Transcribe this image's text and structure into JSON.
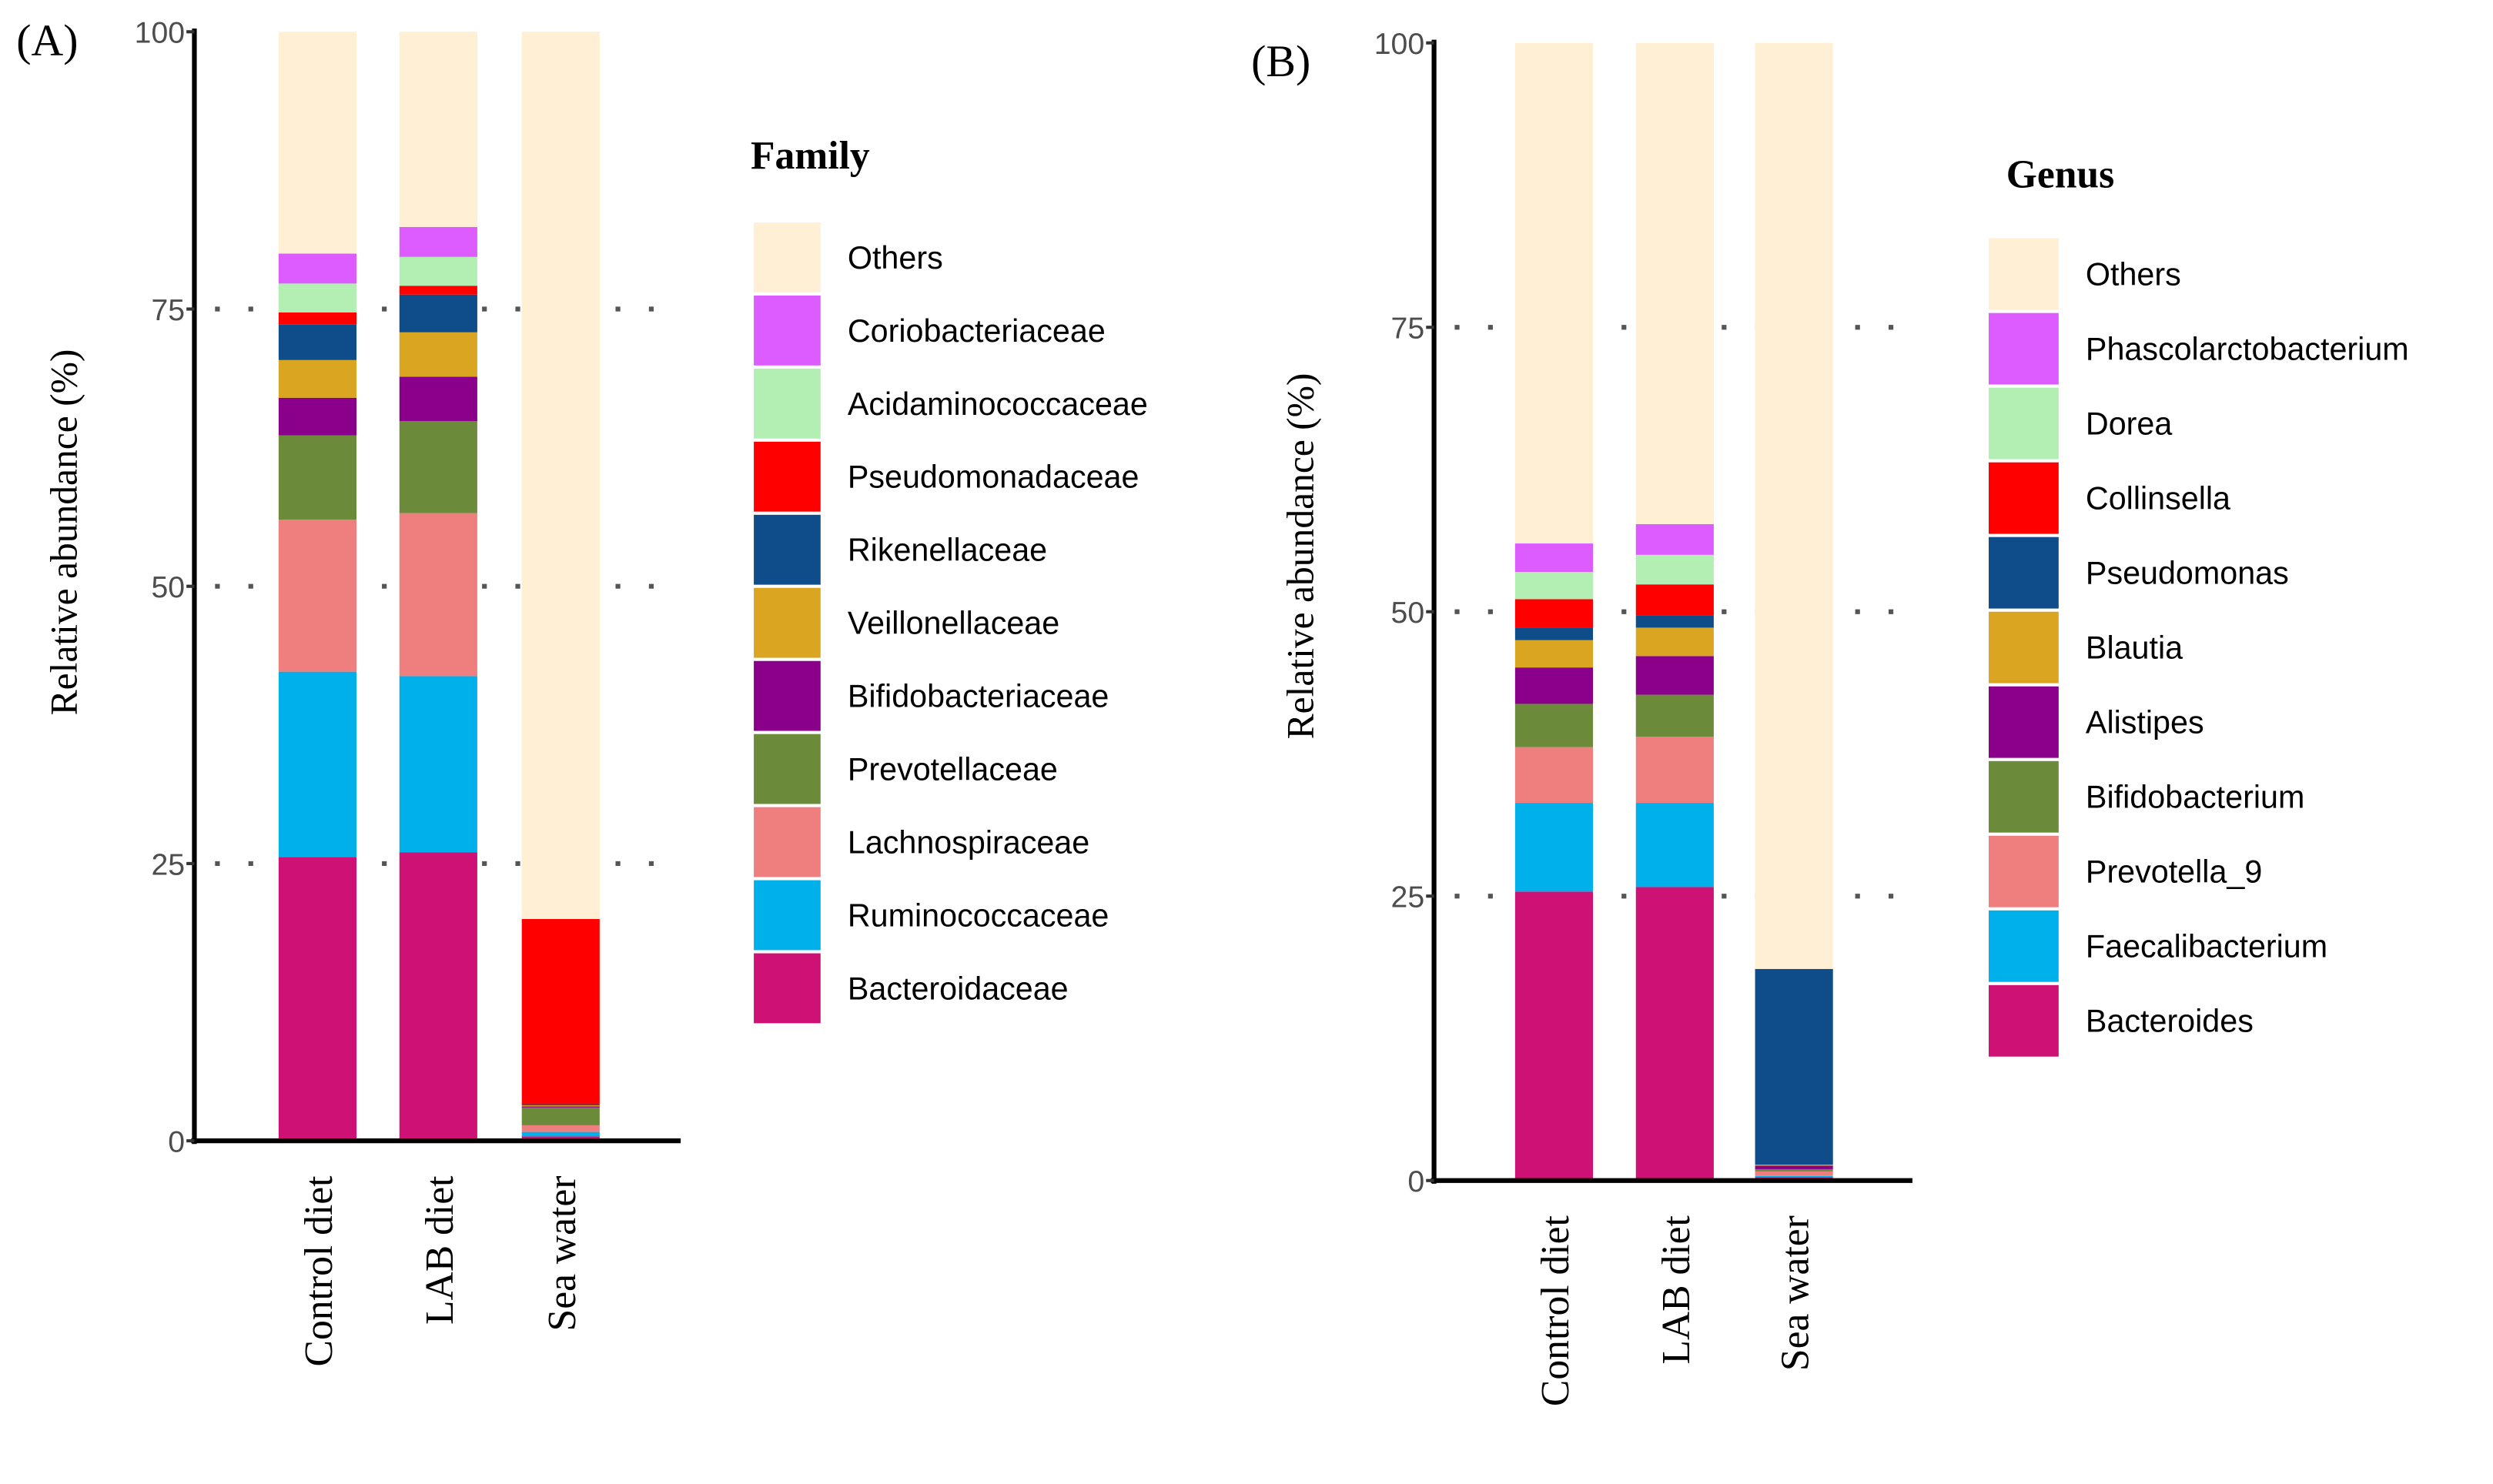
{
  "chart_data": [
    {
      "type": "bar",
      "stacked": true,
      "panel_label": "(A)",
      "ylabel": "Relative abundance (%)",
      "xlabel": "",
      "ylim": [
        0,
        100
      ],
      "yticks": [
        "0",
        "25",
        "50",
        "75",
        "100"
      ],
      "grid": "dotted horizontal at 25, 50, 75",
      "categories": [
        "Control diet",
        "LAB diet",
        "Sea water"
      ],
      "legend_title": "Family",
      "legend_position": "right",
      "series": [
        {
          "name": "Bacteroidaceae",
          "color": "#CE1175",
          "values": [
            25.6,
            26.0,
            0.4
          ]
        },
        {
          "name": "Ruminococcaceae",
          "color": "#00B0EB",
          "values": [
            16.7,
            15.9,
            0.4
          ]
        },
        {
          "name": "Lachnospiraceae",
          "color": "#EF7F7F",
          "values": [
            13.7,
            14.7,
            0.6
          ]
        },
        {
          "name": "Prevotellaceae",
          "color": "#6B8B3A",
          "values": [
            7.6,
            8.3,
            1.6
          ]
        },
        {
          "name": "Bifidobacteriaceae",
          "color": "#8B008B",
          "values": [
            3.4,
            4.0,
            0.1
          ]
        },
        {
          "name": "Veillonellaceae",
          "color": "#DAA520",
          "values": [
            3.4,
            4.0,
            0.1
          ]
        },
        {
          "name": "Rikenellaceae",
          "color": "#0F4C8A",
          "values": [
            3.2,
            3.4,
            0.1
          ]
        },
        {
          "name": "Pseudomonadaceae",
          "color": "#FF0000",
          "values": [
            1.1,
            0.8,
            16.7
          ]
        },
        {
          "name": "Acidaminococcaceae",
          "color": "#B3EEB3",
          "values": [
            2.6,
            2.6,
            0.0
          ]
        },
        {
          "name": "Coriobacteriaceae",
          "color": "#DD5CFF",
          "values": [
            2.7,
            2.7,
            0.0
          ]
        },
        {
          "name": "Others",
          "color": "#FEEFD5",
          "values": [
            20.0,
            17.6,
            80.0
          ]
        }
      ]
    },
    {
      "type": "bar",
      "stacked": true,
      "panel_label": "(B)",
      "ylabel": "Relative abundance (%)",
      "xlabel": "",
      "ylim": [
        0,
        100
      ],
      "yticks": [
        "0",
        "25",
        "50",
        "75",
        "100"
      ],
      "grid": "dotted horizontal at 25, 50, 75",
      "categories": [
        "Control diet",
        "LAB diet",
        "Sea water"
      ],
      "legend_title": "Genus",
      "legend_position": "right",
      "series": [
        {
          "name": "Bacteroides",
          "color": "#CE1175",
          "values": [
            25.4,
            25.8,
            0.3
          ]
        },
        {
          "name": "Faecalibacterium",
          "color": "#00B0EB",
          "values": [
            7.8,
            7.4,
            0.1
          ]
        },
        {
          "name": "Prevotella_9",
          "color": "#EF7F7F",
          "values": [
            4.9,
            5.8,
            0.4
          ]
        },
        {
          "name": "Bifidobacterium",
          "color": "#6B8B3A",
          "values": [
            3.8,
            3.7,
            0.2
          ]
        },
        {
          "name": "Alistipes",
          "color": "#8B008B",
          "values": [
            3.2,
            3.4,
            0.3
          ]
        },
        {
          "name": "Blautia",
          "color": "#DAA520",
          "values": [
            2.4,
            2.5,
            0.1
          ]
        },
        {
          "name": "Pseudomonas",
          "color": "#0F4C8A",
          "values": [
            1.1,
            1.1,
            17.2
          ]
        },
        {
          "name": "Collinsella",
          "color": "#FF0000",
          "values": [
            2.5,
            2.7,
            0.0
          ]
        },
        {
          "name": "Dorea",
          "color": "#B3EEB3",
          "values": [
            2.4,
            2.6,
            0.0
          ]
        },
        {
          "name": "Phascolarctobacterium",
          "color": "#DD5CFF",
          "values": [
            2.5,
            2.7,
            0.0
          ]
        },
        {
          "name": "Others",
          "color": "#FEEFD5",
          "values": [
            44.0,
            42.3,
            81.4
          ]
        }
      ]
    }
  ]
}
